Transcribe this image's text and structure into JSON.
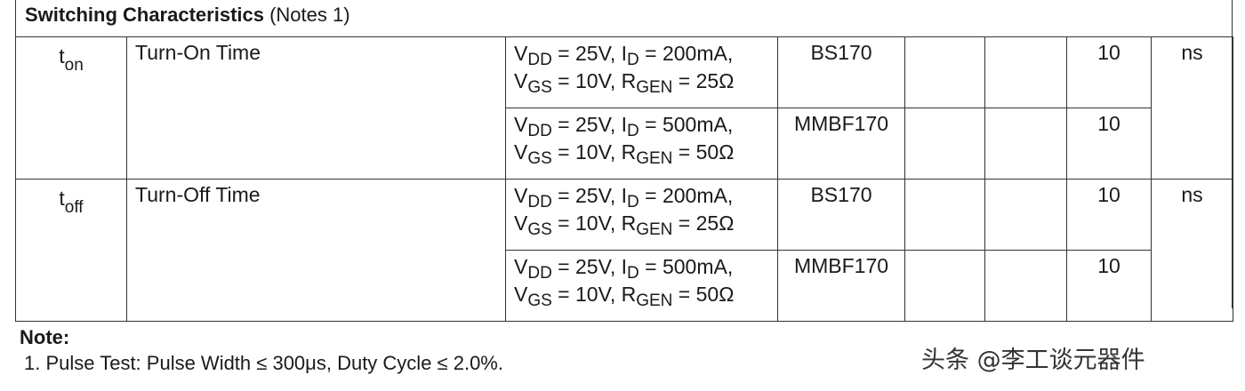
{
  "section": {
    "title_bold": "Switching Characteristics",
    "title_normal": " (Notes 1)"
  },
  "rows": [
    {
      "symbol_main": "t",
      "symbol_sub": "on",
      "parameter": "Turn-On Time",
      "unit": "ns",
      "conditions": [
        {
          "line1": {
            "vdd": "DD",
            "vdd_val": " = 25V, I",
            "id": "D",
            "id_val": " = 200mA,"
          },
          "line2": {
            "vgs": "GS",
            "vgs_val": " = 10V, R",
            "rgen": "GEN",
            "rgen_val": " = 25Ω"
          },
          "type": "BS170",
          "typ": "10"
        },
        {
          "line1": {
            "vdd": "DD",
            "vdd_val": " = 25V, I",
            "id": "D",
            "id_val": " = 500mA,"
          },
          "line2": {
            "vgs": "GS",
            "vgs_val": " = 10V, R",
            "rgen": "GEN",
            "rgen_val": " = 50Ω"
          },
          "type": "MMBF170",
          "typ": "10"
        }
      ]
    },
    {
      "symbol_main": "t",
      "symbol_sub": "off",
      "parameter": "Turn-Off Time",
      "unit": "ns",
      "conditions": [
        {
          "line1": {
            "vdd": "DD",
            "vdd_val": " = 25V, I",
            "id": "D",
            "id_val": " = 200mA,"
          },
          "line2": {
            "vgs": "GS",
            "vgs_val": " = 10V, R",
            "rgen": "GEN",
            "rgen_val": " = 25Ω"
          },
          "type": "BS170",
          "typ": "10"
        },
        {
          "line1": {
            "vdd": "DD",
            "vdd_val": " = 25V, I",
            "id": "D",
            "id_val": " = 500mA,"
          },
          "line2": {
            "vgs": "GS",
            "vgs_val": " = 10V, R",
            "rgen": "GEN",
            "rgen_val": " = 50Ω"
          },
          "type": "MMBF170",
          "typ": "10"
        }
      ]
    }
  ],
  "condition_letters": {
    "v": "V",
    "r_prefix": "R"
  },
  "note": {
    "heading": "Note:",
    "text": "1. Pulse Test: Pulse Width ≤  300μs, Duty Cycle ≤ 2.0%."
  },
  "watermark": "头条 @李工谈元器件"
}
